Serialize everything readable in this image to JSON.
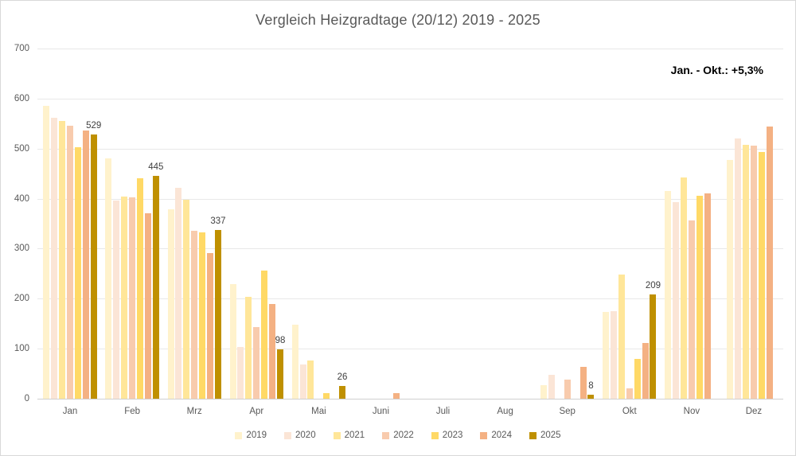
{
  "title": "Vergleich Heizgradtage (20/12) 2019 - 2025",
  "annotation": "Jan. - Okt.: +5,3%",
  "colors": {
    "background": "#ffffff",
    "border": "#d9d9d9",
    "gridline": "#e8e8e8",
    "axis_text": "#595959",
    "title_text": "#595959",
    "data_label_text": "#404040",
    "annotation_text": "#000000"
  },
  "chart_data": {
    "type": "bar",
    "title": "Vergleich Heizgradtage (20/12) 2019 - 2025",
    "xlabel": "",
    "ylabel": "",
    "ylim": [
      0,
      700
    ],
    "yticks": [
      0,
      100,
      200,
      300,
      400,
      500,
      600,
      700
    ],
    "grid": true,
    "legend_position": "bottom",
    "categories": [
      "Jan",
      "Feb",
      "Mrz",
      "Apr",
      "Mai",
      "Juni",
      "Juli",
      "Aug",
      "Sep",
      "Okt",
      "Nov",
      "Dez"
    ],
    "series": [
      {
        "name": "2019",
        "color": "#FFF2CC",
        "values": [
          585,
          481,
          379,
          229,
          148,
          0,
          0,
          0,
          27,
          173,
          415,
          477
        ]
      },
      {
        "name": "2020",
        "color": "#FBE5D6",
        "values": [
          562,
          396,
          422,
          103,
          68,
          0,
          0,
          0,
          48,
          175,
          393,
          520
        ]
      },
      {
        "name": "2021",
        "color": "#FFE699",
        "values": [
          555,
          404,
          397,
          203,
          77,
          0,
          0,
          0,
          0,
          249,
          442,
          508
        ]
      },
      {
        "name": "2022",
        "color": "#F8CBAD",
        "values": [
          545,
          403,
          335,
          144,
          0,
          0,
          0,
          0,
          38,
          21,
          356,
          506
        ]
      },
      {
        "name": "2023",
        "color": "#FFD966",
        "values": [
          503,
          441,
          332,
          256,
          11,
          0,
          0,
          0,
          0,
          80,
          405,
          493
        ]
      },
      {
        "name": "2024",
        "color": "#F4B183",
        "values": [
          536,
          370,
          291,
          189,
          0,
          11,
          0,
          0,
          64,
          112,
          410,
          544
        ]
      },
      {
        "name": "2025",
        "color": "#BF9000",
        "values": [
          529,
          445,
          337,
          98,
          26,
          null,
          null,
          null,
          8,
          209,
          null,
          null
        ],
        "data_labels": [
          "529",
          "445",
          "337",
          "98",
          "26",
          null,
          null,
          null,
          "8",
          "209",
          null,
          null
        ]
      }
    ]
  }
}
